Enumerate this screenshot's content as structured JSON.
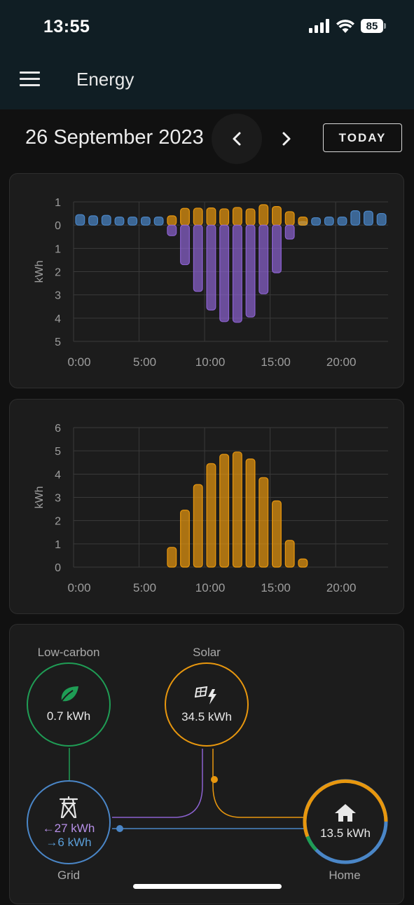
{
  "status_bar": {
    "time": "13:55",
    "battery": "85"
  },
  "header": {
    "title": "Energy"
  },
  "date_nav": {
    "date": "26 September 2023",
    "today_label": "TODAY"
  },
  "colors": {
    "grid_consumption": "#4a86c7",
    "solar": "#e8970e",
    "grid_return": "#8c62d0",
    "low_carbon": "#1f9d55",
    "background": "#111111",
    "card": "#1c1c1c"
  },
  "chart_data": [
    {
      "type": "bar",
      "ylabel": "kWh",
      "x": [
        0,
        1,
        2,
        3,
        4,
        5,
        6,
        7,
        8,
        9,
        10,
        11,
        12,
        13,
        14,
        15,
        16,
        17,
        18,
        19,
        20,
        21,
        22,
        23
      ],
      "x_ticks": [
        "0:00",
        "5:00",
        "10:00",
        "15:00",
        "20:00"
      ],
      "y_ticks_positive": [
        "1",
        "0"
      ],
      "y_ticks_negative": [
        "1",
        "2",
        "3",
        "4",
        "5"
      ],
      "ylim": [
        -5,
        1
      ],
      "grid": true,
      "series": [
        {
          "values": [
            0.45,
            0.4,
            0.42,
            0.35,
            0.35,
            0.35,
            0.35,
            0,
            0,
            0,
            0,
            0,
            0,
            0,
            0,
            0,
            0,
            0.15,
            0.32,
            0.35,
            0.35,
            0.62,
            0.6,
            0.5
          ]
        },
        {
          "values": [
            0,
            0,
            0,
            0,
            0,
            0,
            0,
            0.4,
            0.72,
            0.73,
            0.74,
            0.7,
            0.76,
            0.7,
            0.88,
            0.8,
            0.58,
            0.35,
            0,
            0,
            0,
            0,
            0,
            0
          ]
        },
        {
          "values": [
            0,
            0,
            0,
            0,
            0,
            0,
            0,
            -0.45,
            -1.7,
            -2.85,
            -3.65,
            -4.15,
            -4.18,
            -3.95,
            -2.95,
            -2.05,
            -0.6,
            0,
            0,
            0,
            0,
            0,
            0,
            0
          ]
        }
      ]
    },
    {
      "type": "bar",
      "ylabel": "kWh",
      "x": [
        0,
        1,
        2,
        3,
        4,
        5,
        6,
        7,
        8,
        9,
        10,
        11,
        12,
        13,
        14,
        15,
        16,
        17,
        18,
        19,
        20,
        21,
        22,
        23
      ],
      "x_ticks": [
        "0:00",
        "5:00",
        "10:00",
        "15:00",
        "20:00"
      ],
      "y_ticks": [
        "0",
        "1",
        "2",
        "3",
        "4",
        "5",
        "6"
      ],
      "ylim": [
        0,
        6
      ],
      "grid": true,
      "series": [
        {
          "values": [
            0,
            0,
            0,
            0,
            0,
            0,
            0,
            0.85,
            2.45,
            3.55,
            4.45,
            4.85,
            4.95,
            4.65,
            3.85,
            2.85,
            1.15,
            0.35,
            0,
            0,
            0,
            0,
            0,
            0
          ]
        }
      ]
    }
  ],
  "energy_flow": {
    "low_carbon": {
      "label": "Low-carbon",
      "value": "0.7 kWh"
    },
    "solar": {
      "label": "Solar",
      "value": "34.5 kWh"
    },
    "grid": {
      "label": "Grid",
      "in_value": "←27 kWh",
      "out_value": "→6 kWh"
    },
    "home": {
      "label": "Home",
      "value": "13.5 kWh"
    }
  },
  "icons": {
    "menu": "menu-icon",
    "prev": "chevron-left-icon",
    "next": "chevron-right-icon",
    "low_carbon": "leaf-icon",
    "solar": "solar-power-icon",
    "grid": "transmission-tower-icon",
    "home": "home-icon"
  }
}
